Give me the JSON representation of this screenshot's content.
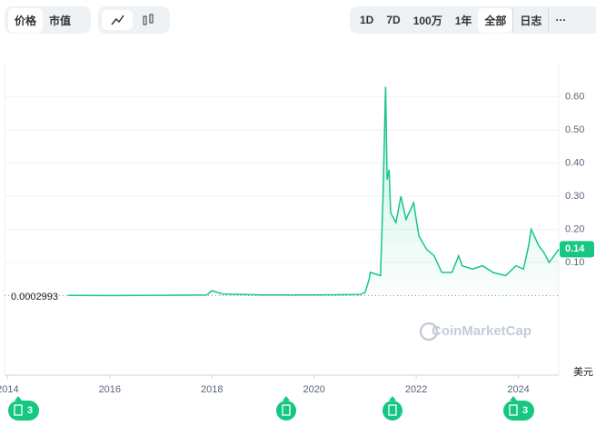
{
  "toolbar": {
    "metric_tabs": [
      "价格",
      "市值"
    ],
    "ranges": [
      "1D",
      "7D",
      "100万",
      "1年",
      "全部",
      "日志",
      "···"
    ]
  },
  "chart_data": {
    "type": "line",
    "x": [
      2015.18,
      2016.0,
      2017.0,
      2017.9,
      2018.0,
      2018.2,
      2019.0,
      2020.0,
      2020.9,
      2021.0,
      2021.08,
      2021.1,
      2021.3,
      2021.35,
      2021.4,
      2021.43,
      2021.47,
      2021.5,
      2021.6,
      2021.7,
      2021.8,
      2021.95,
      2022.05,
      2022.2,
      2022.35,
      2022.5,
      2022.7,
      2022.83,
      2022.9,
      2023.1,
      2023.3,
      2023.5,
      2023.75,
      2023.95,
      2024.1,
      2024.2,
      2024.25,
      2024.4,
      2024.5,
      2024.6,
      2024.7,
      2024.79
    ],
    "series": [
      {
        "name": "价格",
        "color": "#16c784",
        "values": [
          0.0003,
          0.0002,
          0.001,
          0.002,
          0.015,
          0.005,
          0.002,
          0.002,
          0.003,
          0.01,
          0.05,
          0.07,
          0.06,
          0.3,
          0.63,
          0.35,
          0.38,
          0.25,
          0.22,
          0.3,
          0.23,
          0.28,
          0.18,
          0.14,
          0.12,
          0.07,
          0.07,
          0.12,
          0.09,
          0.08,
          0.09,
          0.07,
          0.06,
          0.09,
          0.08,
          0.15,
          0.2,
          0.15,
          0.13,
          0.1,
          0.12,
          0.14
        ]
      }
    ],
    "xlim": [
      2013.94,
      2024.79
    ],
    "xticks": [
      2014,
      2016,
      2018,
      2020,
      2022,
      2024
    ],
    "ylim": [
      -0.24,
      0.7
    ],
    "yticks": [
      {
        "value": 0.1,
        "label": "0.10"
      },
      {
        "value": 0.2,
        "label": "0.20"
      },
      {
        "value": 0.3,
        "label": "0.30"
      },
      {
        "value": 0.4,
        "label": "0.40"
      },
      {
        "value": 0.5,
        "label": "0.50"
      },
      {
        "value": 0.6,
        "label": "0.60"
      }
    ],
    "grid": true,
    "start_label": "0.0002993",
    "current_label": "0.14",
    "unit_label": "美元",
    "watermark": "CoinMarketCap",
    "event_badges": [
      "3",
      "3"
    ]
  }
}
